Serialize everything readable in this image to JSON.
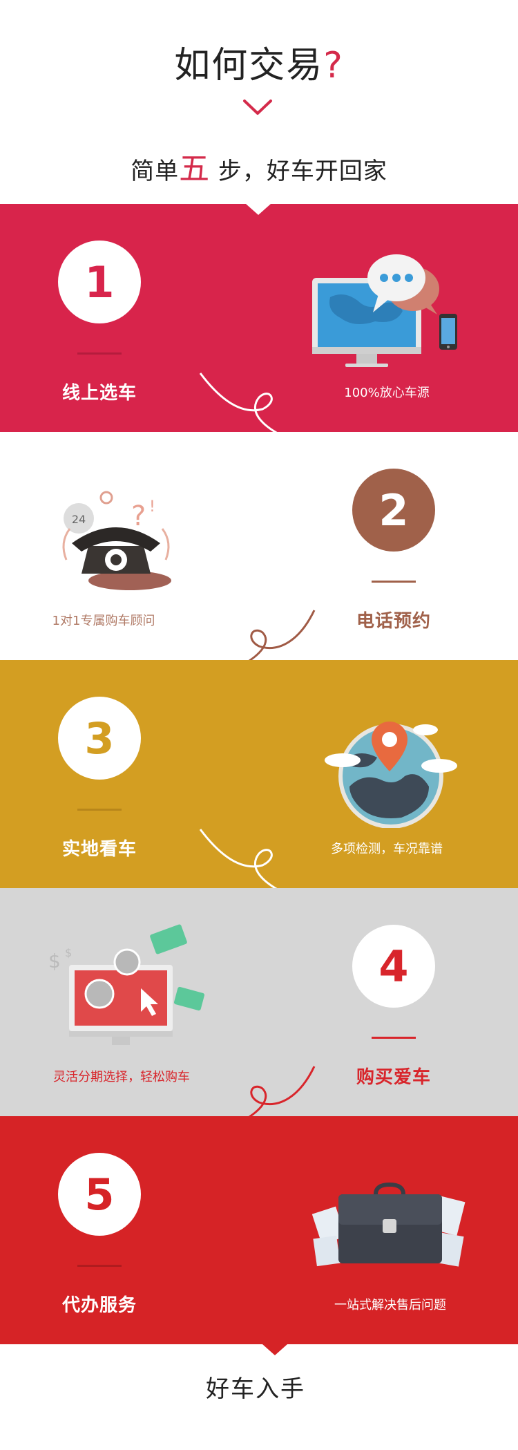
{
  "header": {
    "title": "如何交易",
    "title_mark": "?",
    "subtitle_before": "简单",
    "subtitle_five": "五",
    "subtitle_after": "步，好车开回家"
  },
  "steps": [
    {
      "number": "1",
      "label": "线上选车",
      "caption": "100%放心车源",
      "bg": "#d8244b",
      "circle_bg": "#ffffff",
      "number_color": "#d8244b",
      "label_color": "#ffffff",
      "caption_color": "#ffffff",
      "icon": "computer-chat-icon"
    },
    {
      "number": "2",
      "label": "电话预约",
      "caption": "1对1专属购车顾问",
      "bg": "#ffffff",
      "circle_bg": "#a0614a",
      "number_color": "#ffffff",
      "label_color": "#a0614a",
      "caption_color": "#b07a66",
      "icon": "telephone-icon"
    },
    {
      "number": "3",
      "label": "实地看车",
      "caption": "多项检测，车况靠谱",
      "bg": "#d39e22",
      "circle_bg": "#ffffff",
      "number_color": "#d39e22",
      "label_color": "#ffffff",
      "caption_color": "#ffffff",
      "icon": "globe-pin-icon"
    },
    {
      "number": "4",
      "label": "购买爱车",
      "caption": "灵活分期选择，轻松购车",
      "bg": "#d6d6d6",
      "circle_bg": "#ffffff",
      "number_color": "#d8252b",
      "label_color": "#d8252b",
      "caption_color": "#d8252b",
      "icon": "money-click-icon"
    },
    {
      "number": "5",
      "label": "代办服务",
      "caption": "一站式解决售后问题",
      "bg": "#d62326",
      "circle_bg": "#ffffff",
      "number_color": "#d62326",
      "label_color": "#ffffff",
      "caption_color": "#ffffff",
      "icon": "briefcase-icon"
    }
  ],
  "footer": {
    "text": "好车入手"
  }
}
